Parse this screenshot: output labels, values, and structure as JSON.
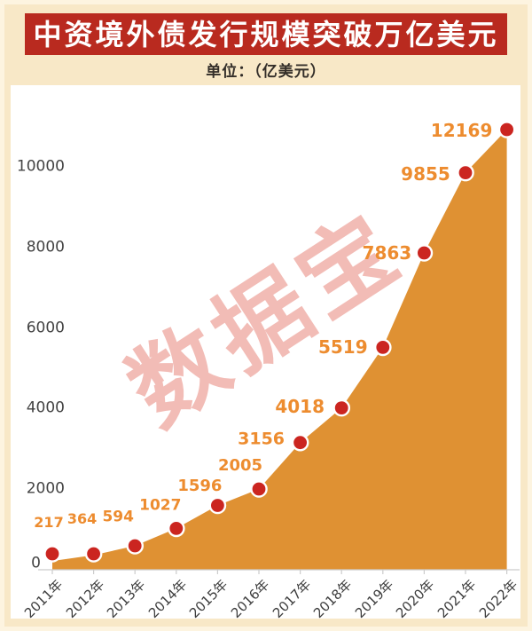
{
  "page": {
    "background": "#f8e8c7",
    "frame_color": "#fdf4e0"
  },
  "header": {
    "title": "中资境外债发行规模突破万亿美元",
    "subtitle": "单位：（亿美元）",
    "banner_color": "#b92a1f",
    "title_color": "#ffffff"
  },
  "watermark": {
    "text": "数据宝",
    "color": "#f2b6b0"
  },
  "chart_data": {
    "type": "area",
    "title": "中资境外债发行规模突破万亿美元",
    "unit_label": "单位：（亿美元）",
    "categories": [
      "2011年",
      "2012年",
      "2013年",
      "2014年",
      "2015年",
      "2016年",
      "2017年",
      "2018年",
      "2019年",
      "2020年",
      "2021年",
      "2022年"
    ],
    "values": [
      217,
      364,
      594,
      1027,
      1596,
      2005,
      3156,
      4018,
      5519,
      7863,
      9855,
      12169
    ],
    "yticks": [
      0,
      2000,
      4000,
      6000,
      8000,
      10000
    ],
    "ylim": [
      0,
      12000
    ],
    "grid": false,
    "legend": false,
    "xlabel": "",
    "ylabel": "",
    "colors": {
      "area": "#df9133",
      "point": "#cb2520",
      "point_border": "#ffffff",
      "value_label": "#ed8c2f",
      "axis_line": "#cccccc",
      "axis_text": "#444444"
    }
  }
}
